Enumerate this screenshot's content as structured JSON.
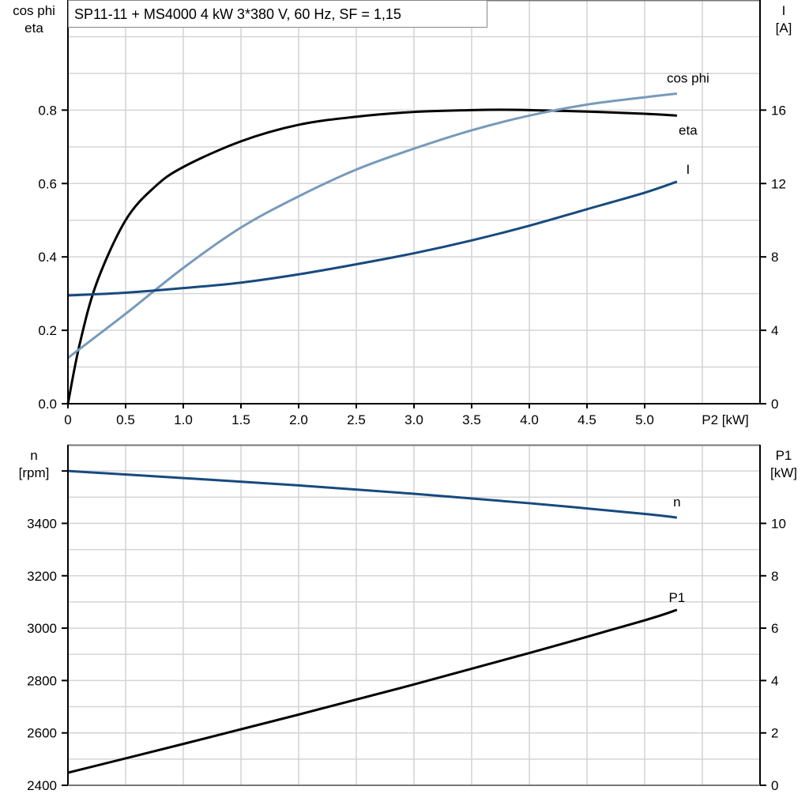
{
  "title": "SP11-11 + MS4000   4 kW   3*380 V, 60 Hz, SF = 1,15",
  "colors": {
    "eta": "#000000",
    "cos_phi": "#779ABB",
    "I": "#164A7E",
    "n": "#164A7E",
    "P1": "#000000",
    "grid": "#d4d4d4"
  },
  "chart_data": [
    {
      "type": "line",
      "ylabel_left": [
        "cos phi",
        "eta"
      ],
      "ylabel_right": [
        "I",
        "[A]"
      ],
      "xlabel": "P2 [kW]",
      "xlim": [
        0,
        6.0
      ],
      "xticks": [
        "0",
        "0.5",
        "1.0",
        "1.5",
        "2.0",
        "2.5",
        "3.0",
        "3.5",
        "4.0",
        "4.5",
        "5.0"
      ],
      "ylim_left": [
        0,
        1.1
      ],
      "yticks_left": [
        "0.0",
        "0.2",
        "0.4",
        "0.6",
        "0.8"
      ],
      "ylim_right": [
        0,
        22
      ],
      "yticks_right": [
        "0",
        "4",
        "8",
        "12",
        "16"
      ],
      "grid": true,
      "series": [
        {
          "name": "eta",
          "axis": "left",
          "x": [
            0,
            0.1,
            0.25,
            0.5,
            0.75,
            1.0,
            1.5,
            2.0,
            2.5,
            3.0,
            3.5,
            3.75,
            4.0,
            4.5,
            5.0,
            5.28
          ],
          "y": [
            0,
            0.16,
            0.33,
            0.5,
            0.59,
            0.645,
            0.715,
            0.76,
            0.782,
            0.795,
            0.8,
            0.801,
            0.8,
            0.796,
            0.79,
            0.785
          ]
        },
        {
          "name": "cos phi",
          "axis": "left",
          "x": [
            0,
            0.5,
            1.0,
            1.5,
            2.0,
            2.5,
            3.0,
            3.5,
            4.0,
            4.5,
            5.0,
            5.28
          ],
          "y": [
            0.125,
            0.245,
            0.37,
            0.48,
            0.565,
            0.638,
            0.695,
            0.745,
            0.785,
            0.815,
            0.835,
            0.845
          ]
        },
        {
          "name": "I",
          "axis": "right",
          "x": [
            0,
            0.5,
            1.0,
            1.5,
            2.0,
            2.5,
            3.0,
            3.5,
            4.0,
            4.5,
            5.0,
            5.28
          ],
          "y": [
            5.9,
            6.05,
            6.3,
            6.6,
            7.05,
            7.6,
            8.2,
            8.9,
            9.7,
            10.6,
            11.5,
            12.1
          ]
        }
      ]
    },
    {
      "type": "line",
      "ylabel_left": [
        "n",
        "[rpm]"
      ],
      "ylabel_right": [
        "P1",
        "[kW]"
      ],
      "xlim": [
        0,
        6.0
      ],
      "ylim_left": [
        2400,
        3700
      ],
      "yticks_left": [
        "2400",
        "2600",
        "2800",
        "3000",
        "3200",
        "3400"
      ],
      "ylim_right": [
        0,
        13
      ],
      "yticks_right": [
        "0",
        "2",
        "4",
        "6",
        "8",
        "10"
      ],
      "grid": true,
      "series": [
        {
          "name": "n",
          "axis": "left",
          "x": [
            0,
            1.0,
            2.0,
            3.0,
            4.0,
            5.0,
            5.28
          ],
          "y": [
            3600,
            3573,
            3545,
            3513,
            3477,
            3436,
            3422
          ]
        },
        {
          "name": "P1",
          "axis": "right",
          "x": [
            0,
            1.0,
            2.0,
            3.0,
            4.0,
            5.0,
            5.28
          ],
          "y": [
            0.48,
            1.58,
            2.7,
            3.85,
            5.05,
            6.3,
            6.7
          ]
        }
      ]
    }
  ]
}
